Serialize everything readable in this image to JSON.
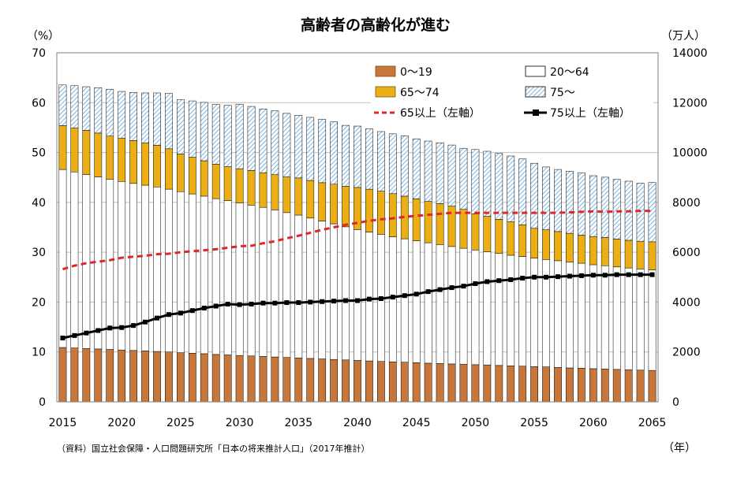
{
  "chart_data": {
    "type": "bar",
    "title": "高齢者の高齢化が進む",
    "left_axis_unit": "（%）",
    "right_axis_unit": "（万人）",
    "x_axis_unit": "（年）",
    "source_note": "（資料）国立社会保障・人口問題研究所「日本の将来推計人口」（2017年推計）",
    "stacked": true,
    "x": [
      2015,
      2016,
      2017,
      2018,
      2019,
      2020,
      2021,
      2022,
      2023,
      2024,
      2025,
      2026,
      2027,
      2028,
      2029,
      2030,
      2031,
      2032,
      2033,
      2034,
      2035,
      2036,
      2037,
      2038,
      2039,
      2040,
      2041,
      2042,
      2043,
      2044,
      2045,
      2046,
      2047,
      2048,
      2049,
      2050,
      2051,
      2052,
      2053,
      2054,
      2055,
      2056,
      2057,
      2058,
      2059,
      2060,
      2061,
      2062,
      2063,
      2064,
      2065
    ],
    "x_tick_labels": [
      "2015",
      "2020",
      "2025",
      "2030",
      "2035",
      "2040",
      "2045",
      "2050",
      "2055",
      "2060",
      "2065"
    ],
    "left_axis": {
      "min": 0,
      "max": 70,
      "ticks": [
        "0",
        "10",
        "20",
        "30",
        "40",
        "50",
        "60",
        "70"
      ]
    },
    "right_axis": {
      "min": 0,
      "max": 14000,
      "ticks": [
        "0",
        "2000",
        "4000",
        "6000",
        "8000",
        "10000",
        "12000",
        "14000"
      ]
    },
    "series": [
      {
        "name": "0〜19",
        "axis": "right",
        "kind": "bar",
        "color": "#c8773a",
        "values": [
          2180,
          2160,
          2140,
          2120,
          2100,
          2080,
          2060,
          2040,
          2020,
          2000,
          1970,
          1950,
          1930,
          1900,
          1880,
          1860,
          1840,
          1820,
          1800,
          1780,
          1760,
          1740,
          1720,
          1700,
          1680,
          1660,
          1640,
          1620,
          1600,
          1590,
          1570,
          1550,
          1540,
          1520,
          1510,
          1490,
          1480,
          1460,
          1440,
          1430,
          1410,
          1400,
          1380,
          1360,
          1350,
          1330,
          1320,
          1300,
          1290,
          1270,
          1260
        ]
      },
      {
        "name": "20〜64",
        "axis": "right",
        "kind": "bar",
        "color": "#ffffff",
        "values": [
          7140,
          7060,
          6980,
          6900,
          6820,
          6760,
          6700,
          6650,
          6600,
          6530,
          6460,
          6390,
          6320,
          6250,
          6190,
          6120,
          6050,
          5980,
          5900,
          5810,
          5730,
          5630,
          5530,
          5440,
          5340,
          5250,
          5170,
          5100,
          5020,
          4950,
          4890,
          4830,
          4770,
          4710,
          4650,
          4600,
          4540,
          4490,
          4440,
          4400,
          4350,
          4310,
          4280,
          4240,
          4210,
          4170,
          4140,
          4110,
          4080,
          4060,
          4030
        ]
      },
      {
        "name": "65〜74",
        "axis": "right",
        "kind": "bar",
        "color": "#ecae15",
        "values": [
          1760,
          1770,
          1770,
          1760,
          1740,
          1740,
          1720,
          1690,
          1670,
          1620,
          1510,
          1470,
          1420,
          1380,
          1360,
          1370,
          1390,
          1390,
          1410,
          1430,
          1490,
          1510,
          1540,
          1590,
          1630,
          1690,
          1720,
          1730,
          1730,
          1710,
          1680,
          1660,
          1640,
          1620,
          1560,
          1450,
          1420,
          1370,
          1340,
          1270,
          1200,
          1190,
          1170,
          1160,
          1130,
          1130,
          1130,
          1120,
          1110,
          1110,
          1130
        ]
      },
      {
        "name": "75〜",
        "axis": "right",
        "kind": "bar",
        "color": "#9fc8ea",
        "pattern": "hatched",
        "values": [
          1630,
          1690,
          1750,
          1820,
          1880,
          1870,
          1930,
          2010,
          2100,
          2220,
          2180,
          2260,
          2340,
          2400,
          2460,
          2590,
          2570,
          2560,
          2560,
          2550,
          2510,
          2530,
          2540,
          2500,
          2440,
          2460,
          2420,
          2390,
          2400,
          2420,
          2410,
          2420,
          2440,
          2450,
          2450,
          2580,
          2610,
          2640,
          2640,
          2640,
          2610,
          2520,
          2490,
          2490,
          2500,
          2440,
          2420,
          2390,
          2370,
          2330,
          2380
        ]
      },
      {
        "name": "65以上（左軸）",
        "axis": "left",
        "kind": "line",
        "color": "#e0262a",
        "dash": true,
        "values": [
          26.6,
          27.3,
          27.8,
          28.1,
          28.4,
          28.9,
          29.1,
          29.3,
          29.6,
          29.7,
          30.0,
          30.2,
          30.4,
          30.6,
          30.9,
          31.2,
          31.3,
          31.8,
          32.2,
          32.8,
          33.3,
          33.9,
          34.5,
          35.0,
          35.5,
          35.9,
          36.3,
          36.6,
          36.8,
          37.1,
          37.3,
          37.5,
          37.7,
          37.9,
          37.9,
          37.9,
          37.9,
          37.9,
          37.9,
          37.9,
          37.9,
          37.9,
          37.9,
          38.0,
          38.1,
          38.2,
          38.1,
          38.2,
          38.2,
          38.3,
          38.3
        ]
      },
      {
        "name": "75以上（左軸）",
        "axis": "left",
        "kind": "line",
        "color": "#000000",
        "marker": "square",
        "values": [
          12.8,
          13.3,
          13.8,
          14.3,
          14.8,
          14.9,
          15.3,
          16.0,
          16.8,
          17.5,
          17.8,
          18.3,
          18.8,
          19.2,
          19.6,
          19.5,
          19.6,
          19.8,
          19.8,
          19.9,
          19.9,
          20.0,
          20.1,
          20.2,
          20.3,
          20.3,
          20.6,
          20.7,
          21.0,
          21.3,
          21.6,
          22.1,
          22.5,
          22.9,
          23.2,
          23.7,
          24.1,
          24.3,
          24.5,
          24.8,
          25.0,
          25.0,
          25.1,
          25.2,
          25.3,
          25.4,
          25.4,
          25.5,
          25.5,
          25.5,
          25.5
        ]
      }
    ],
    "legend": {
      "placement": "top-right",
      "columns": 2
    },
    "grid": {
      "horizontal": true,
      "vertical": false
    }
  }
}
